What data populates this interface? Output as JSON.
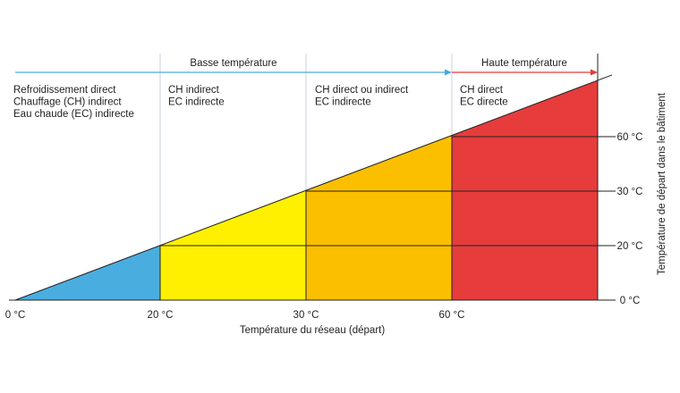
{
  "chart_data": {
    "type": "area",
    "title": "",
    "xlabel": "Température du réseau (départ)",
    "ylabel": "Température de départ dans le bâtiment",
    "x_ticks": [
      "0 °C",
      "20 °C",
      "30 °C",
      "60 °C"
    ],
    "y_ticks": [
      "0 °C",
      "20 °C",
      "30 °C",
      "60 °C"
    ],
    "grid": true,
    "bands": [
      {
        "label": "Basse température",
        "from": "0 °C",
        "to": "60 °C",
        "color": "#4aa8dc"
      },
      {
        "label": "Haute température",
        "from": "60 °C",
        "to": "",
        "color": "#e53a3a"
      }
    ],
    "zones": [
      {
        "id": "zone-1",
        "x_start": 0,
        "x_end": 20,
        "color": "#4aade0",
        "lines": [
          "Refroidissement direct",
          "Chauffage (CH) indirect",
          "Eau chaude (EC) indirecte"
        ]
      },
      {
        "id": "zone-2",
        "x_start": 20,
        "x_end": 30,
        "color": "#fff000",
        "lines": [
          "CH indirect",
          "EC indirecte"
        ]
      },
      {
        "id": "zone-3",
        "x_start": 30,
        "x_end": 60,
        "color": "#fbbf00",
        "lines": [
          "CH direct ou indirect",
          "EC indirecte"
        ]
      },
      {
        "id": "zone-4",
        "x_start": 60,
        "x_end": null,
        "color": "#e63c3c",
        "lines": [
          "CH direct",
          "EC directe"
        ]
      }
    ],
    "diagonal": {
      "from": [
        0,
        0
      ],
      "to": [
        ">60",
        ">60"
      ]
    }
  }
}
